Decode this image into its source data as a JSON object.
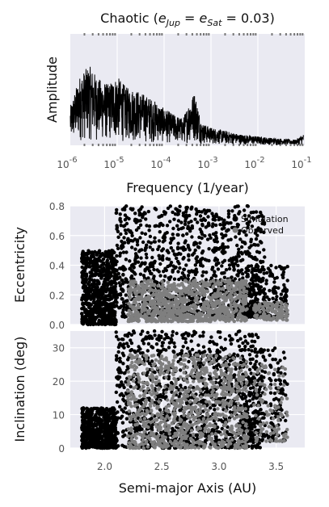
{
  "chart_data": [
    {
      "type": "line",
      "title": {
        "prefix": "Chaotic (",
        "e1": "e",
        "s1": "Jup",
        "eq1": " = ",
        "e2": "e",
        "s2": "Sat",
        "eq2": " = 0.03)"
      },
      "xlabel": "Frequency (1/year)",
      "ylabel": "Amplitude",
      "x_scale": "log",
      "xlim": [
        1e-06,
        0.1
      ],
      "xticks": [
        {
          "base": "10",
          "exp": "-6"
        },
        {
          "base": "10",
          "exp": "-5"
        },
        {
          "base": "10",
          "exp": "-4"
        },
        {
          "base": "10",
          "exp": "-3"
        },
        {
          "base": "10",
          "exp": "-2"
        },
        {
          "base": "10",
          "exp": "-1"
        }
      ],
      "series": [
        {
          "color": "#000000",
          "envelope": [
            [
              -6.0,
              0.35
            ],
            [
              -5.8,
              0.62
            ],
            [
              -5.6,
              0.72
            ],
            [
              -5.4,
              0.6
            ],
            [
              -5.2,
              0.55
            ],
            [
              -5.0,
              0.62
            ],
            [
              -4.8,
              0.52
            ],
            [
              -4.6,
              0.5
            ],
            [
              -4.4,
              0.45
            ],
            [
              -4.2,
              0.4
            ],
            [
              -4.0,
              0.33
            ],
            [
              -3.8,
              0.28
            ],
            [
              -3.6,
              0.24
            ],
            [
              -3.45,
              0.4
            ],
            [
              -3.35,
              0.48
            ],
            [
              -3.2,
              0.2
            ],
            [
              -3.0,
              0.16
            ],
            [
              -2.8,
              0.14
            ],
            [
              -2.6,
              0.12
            ],
            [
              -2.4,
              0.1
            ],
            [
              -2.2,
              0.09
            ],
            [
              -2.0,
              0.08
            ],
            [
              -1.8,
              0.07
            ],
            [
              -1.5,
              0.06
            ],
            [
              -1.2,
              0.05
            ],
            [
              -1.02,
              0.1
            ]
          ]
        }
      ]
    },
    {
      "type": "scatter",
      "ylabel": "Eccentricity",
      "xlim": [
        1.7,
        3.75
      ],
      "ylim": [
        0.0,
        0.8
      ],
      "yticks": [
        "0.0",
        "0.2",
        "0.4",
        "0.6",
        "0.8"
      ],
      "legend": {
        "placement": "top-right",
        "items": [
          "Simulation",
          "Observed"
        ]
      },
      "series": [
        {
          "name": "Simulation",
          "color": "#000000",
          "clusters": [
            {
              "n": 700,
              "x": [
                1.8,
                2.1
              ],
              "y": [
                0.0,
                0.5
              ]
            },
            {
              "n": 1200,
              "x": [
                2.1,
                3.4
              ],
              "y": [
                0.05,
                0.8
              ]
            },
            {
              "n": 250,
              "x": [
                3.2,
                3.6
              ],
              "y": [
                0.05,
                0.4
              ]
            }
          ]
        },
        {
          "name": "Observed",
          "color": "#7f7f7f",
          "clusters": [
            {
              "n": 900,
              "x": [
                2.2,
                3.25
              ],
              "y": [
                0.02,
                0.3
              ]
            },
            {
              "n": 120,
              "x": [
                3.3,
                3.6
              ],
              "y": [
                0.03,
                0.15
              ]
            }
          ]
        }
      ]
    },
    {
      "type": "scatter",
      "ylabel": "Inclination (deg)",
      "xlabel": "Semi-major Axis (AU)",
      "xlim": [
        1.7,
        3.75
      ],
      "ylim": [
        0,
        35
      ],
      "yticks": [
        "0",
        "10",
        "20",
        "30"
      ],
      "xticks": [
        "2.0",
        "2.5",
        "3.0",
        "3.5"
      ],
      "series": [
        {
          "name": "Simulation",
          "color": "#000000",
          "clusters": [
            {
              "n": 600,
              "x": [
                1.8,
                2.1
              ],
              "y": [
                0,
                12
              ]
            },
            {
              "n": 1200,
              "x": [
                2.1,
                3.4
              ],
              "y": [
                0,
                35
              ]
            },
            {
              "n": 200,
              "x": [
                3.2,
                3.6
              ],
              "y": [
                2,
                30
              ]
            }
          ]
        },
        {
          "name": "Observed",
          "color": "#7f7f7f",
          "clusters": [
            {
              "n": 900,
              "x": [
                2.2,
                3.25
              ],
              "y": [
                0,
                28
              ]
            },
            {
              "n": 100,
              "x": [
                3.3,
                3.6
              ],
              "y": [
                2,
                25
              ]
            }
          ]
        }
      ]
    }
  ]
}
